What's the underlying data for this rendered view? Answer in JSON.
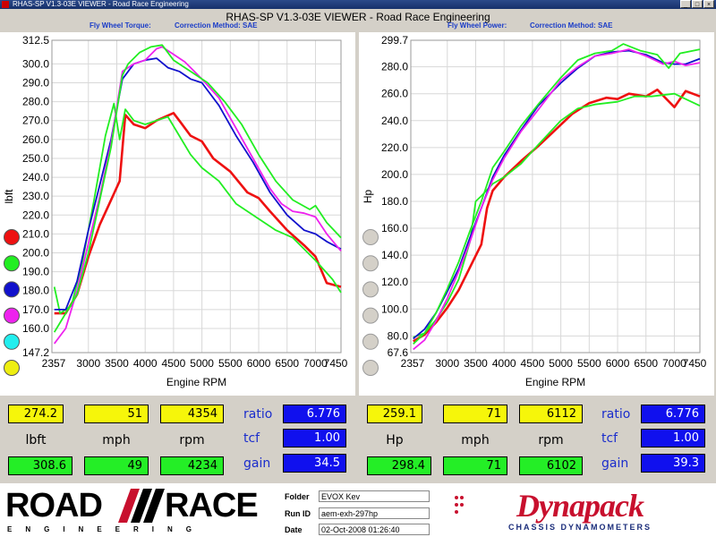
{
  "window": {
    "title": "RHAS-SP V1.3-03E VIEWER - Road Race Engineering",
    "controls": [
      "_",
      "□",
      "×"
    ]
  },
  "header": {
    "title": "RHAS-SP V1.3-03E VIEWER - Road Race Engineering"
  },
  "left_panel": {
    "subtitle_left": "Fly Wheel Torque:",
    "subtitle_right": "Correction Method: SAE",
    "readout": {
      "row1": [
        "274.2",
        "51",
        "4354"
      ],
      "units": [
        "lbft",
        "mph",
        "rpm"
      ],
      "row3": [
        "308.6",
        "49",
        "4234"
      ],
      "labels": [
        "ratio",
        "tcf",
        "gain"
      ],
      "values": [
        "6.776",
        "1.00",
        "34.5"
      ]
    }
  },
  "right_panel": {
    "subtitle_left": "Fly Wheel Power:",
    "subtitle_right": "Correction Method: SAE",
    "readout": {
      "row1": [
        "259.1",
        "71",
        "6112"
      ],
      "units": [
        "Hp",
        "mph",
        "rpm"
      ],
      "row3": [
        "298.4",
        "71",
        "6102"
      ],
      "labels": [
        "ratio",
        "tcf",
        "gain"
      ],
      "values": [
        "6.776",
        "1.00",
        "39.3"
      ]
    }
  },
  "left_legend_colors": [
    "#ee1111",
    "#22ee22",
    "#1111cc",
    "#ee22ee",
    "#22eeee",
    "#eeee11"
  ],
  "right_legend_colors": [
    "#d4d0c8",
    "#d4d0c8",
    "#d4d0c8",
    "#d4d0c8",
    "#d4d0c8",
    "#d4d0c8"
  ],
  "footer": {
    "logo_left": {
      "line1a": "ROAD",
      "line1b": "RACE",
      "line2": "ENGINEERING"
    },
    "folder_label": "Folder",
    "folder_value": "EVOX Kev",
    "runid_label": "Run ID",
    "runid_value": "aem-exh-297hp",
    "date_label": "Date",
    "date_value": "02-Oct-2008  01:26:40",
    "logo_right": {
      "word": "Dynapack",
      "sub": "CHASSIS DYNAMOMETERS"
    }
  },
  "chart_data": [
    {
      "type": "line",
      "title": "",
      "xlabel": "Engine RPM",
      "ylabel": "lbft",
      "xlim": [
        2357,
        7450
      ],
      "ylim": [
        147.2,
        312.5
      ],
      "xticks": [
        "2357",
        "3000",
        "3500",
        "4000",
        "4500",
        "5000",
        "5500",
        "6000",
        "6500",
        "7000",
        "7450"
      ],
      "yticks": [
        "312.5",
        "300.0",
        "290.0",
        "280.0",
        "270.0",
        "260.0",
        "250.0",
        "240.0",
        "230.0",
        "220.0",
        "210.0",
        "200.0",
        "190.0",
        "180.0",
        "170.0",
        "160.0",
        "147.2"
      ],
      "grid": true,
      "series": [
        {
          "color": "#ee1111",
          "x": [
            2400,
            2600,
            2800,
            3000,
            3200,
            3400,
            3550,
            3650,
            3800,
            4000,
            4200,
            4500,
            4600,
            4800,
            5000,
            5200,
            5500,
            5800,
            6000,
            6200,
            6500,
            6800,
            7000,
            7200,
            7450
          ],
          "y": [
            168,
            168,
            178,
            198,
            215,
            228,
            238,
            273,
            268,
            266,
            270,
            274,
            270,
            262,
            259,
            250,
            243,
            232,
            229,
            222,
            212,
            204,
            198,
            184,
            182
          ]
        },
        {
          "color": "#22ee22",
          "x": [
            2400,
            2500,
            2700,
            2900,
            3100,
            3300,
            3450,
            3550,
            3650,
            3800,
            4000,
            4200,
            4400,
            4600,
            4800,
            5000,
            5300,
            5600,
            6000,
            6300,
            6600,
            7000,
            7300,
            7450
          ],
          "y": [
            182,
            168,
            172,
            196,
            228,
            262,
            279,
            260,
            276,
            270,
            268,
            270,
            272,
            262,
            252,
            245,
            238,
            226,
            218,
            212,
            208,
            196,
            186,
            179
          ]
        },
        {
          "color": "#1111cc",
          "x": [
            2400,
            2600,
            2800,
            3000,
            3200,
            3400,
            3600,
            3800,
            4000,
            4200,
            4400,
            4600,
            4800,
            5000,
            5300,
            5600,
            5900,
            6200,
            6500,
            6800,
            7000,
            7200,
            7450
          ],
          "y": [
            170,
            170,
            185,
            212,
            236,
            260,
            292,
            300,
            302,
            303,
            298,
            296,
            292,
            290,
            278,
            262,
            248,
            232,
            220,
            212,
            210,
            206,
            202
          ]
        },
        {
          "color": "#ee22ee",
          "x": [
            2400,
            2600,
            2800,
            3000,
            3200,
            3400,
            3600,
            3800,
            4000,
            4200,
            4300,
            4500,
            4700,
            5000,
            5300,
            5600,
            5900,
            6200,
            6400,
            6600,
            6800,
            7000,
            7200,
            7450
          ],
          "y": [
            152,
            160,
            180,
            205,
            230,
            258,
            296,
            300,
            302,
            308,
            309,
            305,
            301,
            292,
            282,
            266,
            250,
            234,
            226,
            222,
            221,
            219,
            210,
            201
          ]
        },
        {
          "color": "#22ee22",
          "x": [
            2400,
            2600,
            2800,
            3000,
            3200,
            3400,
            3600,
            3700,
            3900,
            4100,
            4300,
            4500,
            4800,
            5100,
            5400,
            5700,
            6000,
            6300,
            6600,
            6900,
            7000,
            7200,
            7450
          ],
          "y": [
            158,
            168,
            178,
            200,
            228,
            256,
            294,
            300,
            306,
            309,
            310,
            302,
            296,
            290,
            280,
            268,
            252,
            238,
            228,
            223,
            225,
            216,
            208
          ]
        }
      ]
    },
    {
      "type": "line",
      "title": "",
      "xlabel": "Engine RPM",
      "ylabel": "Hp",
      "xlim": [
        2357,
        7450
      ],
      "ylim": [
        67.6,
        299.7
      ],
      "xticks": [
        "2357",
        "3000",
        "3500",
        "4000",
        "4500",
        "5000",
        "5500",
        "6000",
        "6500",
        "7000",
        "7450"
      ],
      "yticks": [
        "299.7",
        "280.0",
        "260.0",
        "240.0",
        "220.0",
        "200.0",
        "180.0",
        "160.0",
        "140.0",
        "120.0",
        "100.0",
        "80.0",
        "67.6"
      ],
      "grid": true,
      "series": [
        {
          "color": "#ee1111",
          "x": [
            2400,
            2600,
            2800,
            3000,
            3200,
            3400,
            3600,
            3700,
            3800,
            4000,
            4300,
            4600,
            4900,
            5200,
            5500,
            5800,
            6000,
            6200,
            6500,
            6700,
            7000,
            7200,
            7450
          ],
          "y": [
            76,
            81,
            90,
            101,
            114,
            131,
            148,
            175,
            188,
            198,
            210,
            221,
            233,
            245,
            253,
            257,
            256,
            260,
            258,
            263,
            250,
            262,
            258
          ]
        },
        {
          "color": "#22ee22",
          "x": [
            2400,
            2600,
            2800,
            3000,
            3200,
            3400,
            3500,
            3600,
            3800,
            4000,
            4300,
            4600,
            5000,
            5300,
            5600,
            6000,
            6300,
            6600,
            7000,
            7200,
            7450
          ],
          "y": [
            79,
            82,
            92,
            105,
            122,
            150,
            180,
            184,
            193,
            198,
            208,
            222,
            240,
            249,
            252,
            254,
            258,
            258,
            260,
            256,
            251
          ]
        },
        {
          "color": "#1111cc",
          "x": [
            2400,
            2600,
            2800,
            3000,
            3200,
            3400,
            3600,
            3800,
            4000,
            4300,
            4600,
            5000,
            5300,
            5600,
            5900,
            6200,
            6500,
            6800,
            7000,
            7200,
            7450
          ],
          "y": [
            78,
            85,
            97,
            113,
            130,
            153,
            175,
            198,
            214,
            233,
            251,
            268,
            279,
            288,
            291,
            292,
            289,
            283,
            282,
            282,
            286
          ]
        },
        {
          "color": "#ee22ee",
          "x": [
            2400,
            2600,
            2800,
            3000,
            3200,
            3400,
            3600,
            3800,
            4000,
            4300,
            4600,
            5000,
            5300,
            5600,
            5900,
            6200,
            6500,
            6800,
            7000,
            7200,
            7450
          ],
          "y": [
            70,
            77,
            91,
            108,
            128,
            150,
            175,
            196,
            212,
            232,
            248,
            270,
            280,
            288,
            290,
            293,
            288,
            282,
            284,
            281,
            283
          ]
        },
        {
          "color": "#22ee22",
          "x": [
            2400,
            2600,
            2800,
            3000,
            3200,
            3400,
            3600,
            3800,
            4000,
            4300,
            4600,
            5000,
            5300,
            5600,
            5900,
            6100,
            6400,
            6700,
            6900,
            7100,
            7450
          ],
          "y": [
            74,
            82,
            97,
            115,
            135,
            158,
            180,
            205,
            217,
            236,
            252,
            272,
            285,
            290,
            292,
            297,
            292,
            289,
            279,
            290,
            293
          ]
        }
      ]
    }
  ]
}
